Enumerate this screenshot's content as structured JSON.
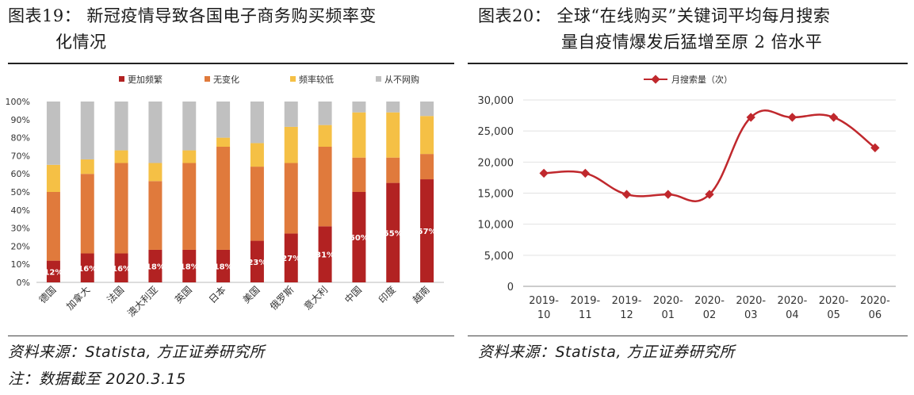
{
  "left": {
    "title_line1": "图表19：  新冠疫情导致各国电子商务购买频率变",
    "title_line2": "化情况",
    "source": "资料来源：Statista, 方正证券研究所",
    "note": "注：数据截至 2020.3.15"
  },
  "right": {
    "title_line1": "图表20：  全球“在线购买”关键词平均每月搜索",
    "title_line2": "量自疫情爆发后猛增至原 2 倍水平",
    "source": "资料来源：Statista, 方正证券研究所"
  },
  "chart_data": [
    {
      "type": "bar",
      "stacked": true,
      "title": "",
      "categories": [
        "德国",
        "加拿大",
        "法国",
        "澳大利亚",
        "英国",
        "日本",
        "美国",
        "俄罗斯",
        "意大利",
        "中国",
        "印度",
        "越南"
      ],
      "series": [
        {
          "name": "更加频繁",
          "color": "#b22222",
          "values": [
            12,
            16,
            16,
            18,
            18,
            18,
            23,
            27,
            31,
            50,
            55,
            57
          ]
        },
        {
          "name": "无变化",
          "color": "#e07a3c",
          "values": [
            38,
            44,
            50,
            38,
            48,
            57,
            41,
            39,
            44,
            19,
            14,
            14
          ]
        },
        {
          "name": "频率较低",
          "color": "#f5c045",
          "values": [
            15,
            8,
            7,
            10,
            7,
            5,
            13,
            20,
            12,
            25,
            25,
            21
          ]
        },
        {
          "name": "从不网购",
          "color": "#c0c0c0",
          "values": [
            35,
            32,
            27,
            34,
            27,
            20,
            23,
            14,
            13,
            6,
            6,
            8
          ]
        }
      ],
      "data_labels": [
        "12%",
        "16%",
        "16%",
        "18%",
        "18%",
        "18%",
        "23%",
        "27%",
        "31%",
        "50%",
        "55%",
        "57%"
      ],
      "yticks": [
        "0%",
        "10%",
        "20%",
        "30%",
        "40%",
        "50%",
        "60%",
        "70%",
        "80%",
        "90%",
        "100%"
      ],
      "ylim": [
        0,
        100
      ],
      "legend": "top"
    },
    {
      "type": "line",
      "title": "",
      "x": [
        [
          "2019-",
          "10"
        ],
        [
          "2019-",
          "11"
        ],
        [
          "2019-",
          "12"
        ],
        [
          "2020-",
          "01"
        ],
        [
          "2020-",
          "02"
        ],
        [
          "2020-",
          "03"
        ],
        [
          "2020-",
          "04"
        ],
        [
          "2020-",
          "05"
        ],
        [
          "2020-",
          "06"
        ]
      ],
      "series": [
        {
          "name": "月搜索量（次）",
          "color": "#c0282d",
          "values": [
            18200,
            18200,
            14800,
            14800,
            14800,
            27200,
            27200,
            27200,
            22300
          ]
        }
      ],
      "yticks": [
        "0",
        "5,000",
        "10,000",
        "15,000",
        "20,000",
        "25,000",
        "30,000"
      ],
      "ylim": [
        0,
        30000
      ],
      "grid": true,
      "legend": "top"
    }
  ]
}
